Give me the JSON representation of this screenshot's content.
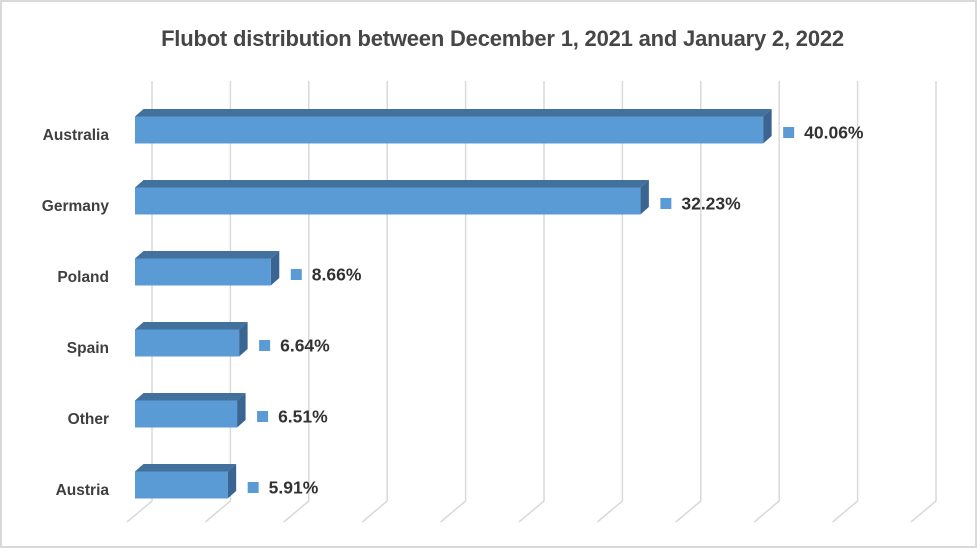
{
  "chart_data": {
    "type": "bar",
    "orientation": "horizontal",
    "style": "3d-box",
    "title": "Flubot distribution between December 1, 2021 and January 2, 2022",
    "categories": [
      "Australia",
      "Germany",
      "Poland",
      "Spain",
      "Other",
      "Austria"
    ],
    "values": [
      40.06,
      32.23,
      8.66,
      6.64,
      6.51,
      5.91
    ],
    "value_labels": [
      "40.06%",
      "32.23%",
      "8.66%",
      "6.64%",
      "6.51%",
      "5.91%"
    ],
    "xlim": [
      0,
      50
    ],
    "grid_step": 5,
    "grid": true,
    "legend": false,
    "axis_tick_labels_visible": false,
    "colors": {
      "bar_front": "#5B9BD5",
      "bar_top": "#41719C",
      "bar_side": "#3A6492",
      "gridline": "#D9D9D9",
      "category_text": "#3F3F3F",
      "value_text": "#323232",
      "title_text": "#464646",
      "value_marker": "#5B9BD5",
      "frame_border": "#D9D9D9",
      "background": "#FFFFFF"
    }
  }
}
